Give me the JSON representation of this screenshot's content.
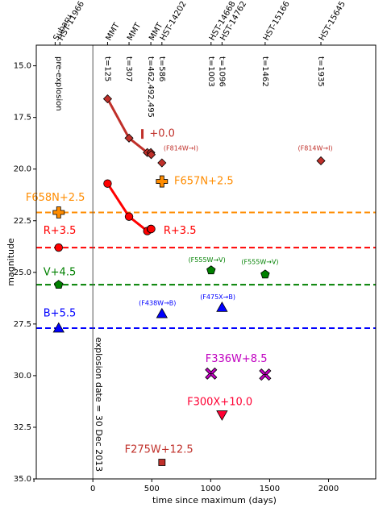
{
  "chart_data": {
    "type": "scatter",
    "xlabel": "time since maximum (days)",
    "ylabel": "magnitude",
    "xlim": [
      -480,
      2400
    ],
    "ylim": [
      35.0,
      14.0
    ],
    "y_inverted": true,
    "x_ticks": [
      -500,
      0,
      500,
      1000,
      1500,
      2000
    ],
    "x_tick_labels": [
      "",
      "0",
      "500",
      "1000",
      "1500",
      "2000"
    ],
    "y_ticks": [
      15.0,
      17.5,
      20.0,
      22.5,
      25.0,
      27.5,
      30.0,
      32.5,
      35.0
    ],
    "y_tick_labels": [
      "15.0",
      "17.5",
      "20.0",
      "22.5",
      "25.0",
      "27.5",
      "30.0",
      "32.5",
      "35.0"
    ],
    "grid": false,
    "top_epoch_labels": [
      {
        "x": -320,
        "text": "Subaru"
      },
      {
        "x": -280,
        "text": "HST-11966"
      },
      {
        "x": 125,
        "text": "MMT"
      },
      {
        "x": 307,
        "text": "MMT"
      },
      {
        "x": 492,
        "text": "MMT"
      },
      {
        "x": 586,
        "text": "HST-14202"
      },
      {
        "x": 1003,
        "text": "HST-14668"
      },
      {
        "x": 1096,
        "text": "HST-14762"
      },
      {
        "x": 1462,
        "text": "HST-15166"
      },
      {
        "x": 1935,
        "text": "HST-15645"
      }
    ],
    "epoch_labels": [
      {
        "x": -290,
        "text": "pre-explosion"
      },
      {
        "x": 125,
        "text": "t=125"
      },
      {
        "x": 307,
        "text": "t=307"
      },
      {
        "x": 492,
        "text": "t=462,492,495"
      },
      {
        "x": 586,
        "text": "t=586"
      },
      {
        "x": 1003,
        "text": "t=1003"
      },
      {
        "x": 1096,
        "text": "t=1096"
      },
      {
        "x": 1462,
        "text": "t=1462"
      },
      {
        "x": 1935,
        "text": "t=1935"
      }
    ],
    "explosion_line": {
      "x": 0,
      "label": "explosion date = 30 Dec 2013"
    },
    "reference_lines": [
      {
        "y": 22.1,
        "color": "#ff8c00"
      },
      {
        "y": 23.8,
        "color": "#ff0000"
      },
      {
        "y": 25.6,
        "color": "#008000"
      },
      {
        "y": 27.7,
        "color": "#0000ff"
      }
    ],
    "series": [
      {
        "name": "I",
        "marker": "diamond",
        "color": "#c0302a",
        "connect": true,
        "x": [
          125,
          307,
          462,
          492,
          495
        ],
        "y": [
          16.6,
          18.5,
          19.2,
          19.2,
          19.3
        ]
      },
      {
        "name": "I",
        "marker": "diamond",
        "color": "#c0302a",
        "connect": false,
        "x": [
          586,
          1935
        ],
        "y": [
          19.7,
          19.6
        ]
      },
      {
        "name": "R",
        "marker": "circle",
        "color": "#ff0000",
        "connect": true,
        "x": [
          125,
          307,
          462,
          492,
          495
        ],
        "y": [
          20.7,
          22.3,
          23.0,
          22.9,
          22.9
        ]
      },
      {
        "name": "R",
        "marker": "circle",
        "color": "#ff0000",
        "connect": false,
        "x": [
          -290
        ],
        "y": [
          23.8
        ]
      },
      {
        "name": "F658N",
        "marker": "plus",
        "color": "#ff8c00",
        "connect": false,
        "x": [
          -290
        ],
        "y": [
          22.1
        ]
      },
      {
        "name": "F657N",
        "marker": "plus",
        "color": "#ff8c00",
        "connect": false,
        "x": [
          586
        ],
        "y": [
          20.6
        ]
      },
      {
        "name": "V",
        "marker": "pentagon",
        "color": "#008000",
        "connect": false,
        "x": [
          -290,
          1003,
          1462
        ],
        "y": [
          25.6,
          24.9,
          25.1
        ]
      },
      {
        "name": "B",
        "marker": "triangle-up",
        "color": "#0000ff",
        "connect": false,
        "x": [
          -290,
          586,
          1096
        ],
        "y": [
          27.7,
          27.0,
          26.7
        ]
      },
      {
        "name": "F336W",
        "marker": "x",
        "color": "#c000c0",
        "connect": false,
        "x": [
          1003,
          1462
        ],
        "y": [
          29.9,
          29.95
        ]
      },
      {
        "name": "F300X",
        "marker": "triangle-down",
        "color": "#ff0033",
        "connect": false,
        "x": [
          1096
        ],
        "y": [
          31.9
        ]
      },
      {
        "name": "F275W",
        "marker": "square",
        "color": "#c0302a",
        "connect": false,
        "x": [
          586
        ],
        "y": [
          34.2
        ]
      }
    ],
    "offset_marker": {
      "x": 420,
      "y": 18.3,
      "color": "#c0302a"
    },
    "annotations": [
      {
        "text": "+0.0",
        "x": 480,
        "y": 18.3,
        "color": "#c0302a",
        "size": 13
      },
      {
        "text": "(F814W→I)",
        "x": 600,
        "y": 19.0,
        "color": "#c0302a",
        "size": 8
      },
      {
        "text": "(F814W→I)",
        "x": 1740,
        "y": 19.0,
        "color": "#c0302a",
        "size": 8
      },
      {
        "text": "F657N+2.5",
        "x": 690,
        "y": 20.6,
        "color": "#ff8c00",
        "size": 13
      },
      {
        "text": "F658N+2.5",
        "x": -570,
        "y": 21.4,
        "color": "#ff8c00",
        "size": 13
      },
      {
        "text": "R+3.5",
        "x": 600,
        "y": 23.0,
        "color": "#ff0000",
        "size": 13
      },
      {
        "text": "R+3.5",
        "x": -420,
        "y": 23.0,
        "color": "#ff0000",
        "size": 13
      },
      {
        "text": "(F555W→V)",
        "x": 810,
        "y": 24.4,
        "color": "#008000",
        "size": 8
      },
      {
        "text": "(F555W→V)",
        "x": 1260,
        "y": 24.5,
        "color": "#008000",
        "size": 8
      },
      {
        "text": "V+4.5",
        "x": -420,
        "y": 25.0,
        "color": "#008000",
        "size": 13
      },
      {
        "text": "(F475X→B)",
        "x": 910,
        "y": 26.2,
        "color": "#0000ff",
        "size": 8
      },
      {
        "text": "(F438W→B)",
        "x": 390,
        "y": 26.5,
        "color": "#0000ff",
        "size": 8
      },
      {
        "text": "B+5.5",
        "x": -420,
        "y": 27.0,
        "color": "#0000ff",
        "size": 13
      },
      {
        "text": "F336W+8.5",
        "x": 955,
        "y": 29.2,
        "color": "#c000c0",
        "size": 13
      },
      {
        "text": "F300X+10.0",
        "x": 800,
        "y": 31.3,
        "color": "#ff0033",
        "size": 13
      },
      {
        "text": "F275W+12.5",
        "x": 270,
        "y": 33.6,
        "color": "#c0302a",
        "size": 13
      }
    ]
  }
}
